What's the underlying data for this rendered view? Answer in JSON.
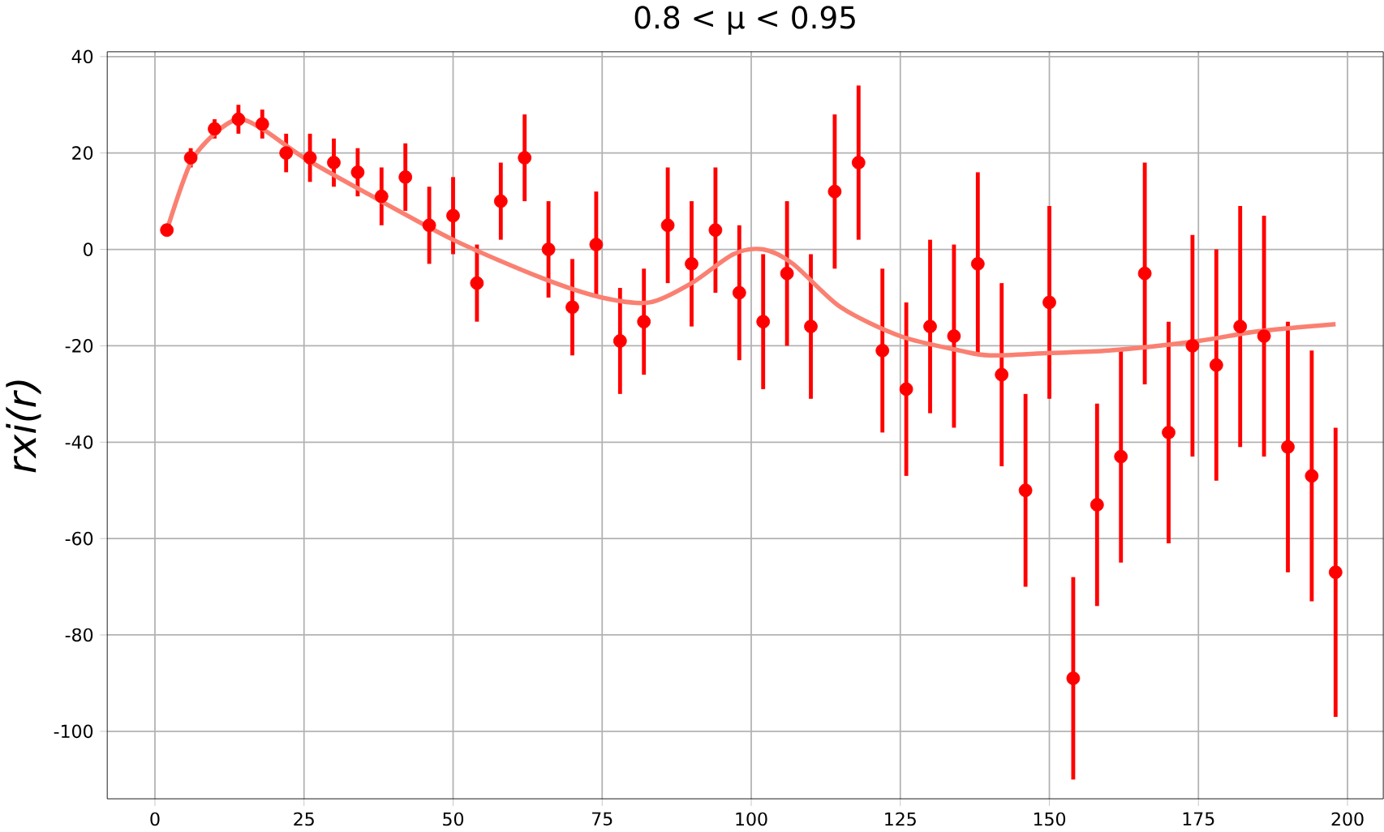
{
  "chart_data": {
    "type": "scatter",
    "title": "0.8 < μ < 0.95",
    "ylabel": "rxi(r)",
    "x": [
      2,
      6,
      10,
      14,
      18,
      22,
      26,
      30,
      34,
      38,
      42,
      46,
      50,
      54,
      58,
      62,
      66,
      70,
      74,
      78,
      82,
      86,
      90,
      94,
      98,
      102,
      106,
      110,
      114,
      118,
      122,
      126,
      130,
      134,
      138,
      142,
      146,
      150,
      154,
      158,
      162,
      166,
      170,
      174,
      178,
      182,
      186,
      190,
      194,
      198
    ],
    "series": [
      {
        "color": "#ff0000",
        "marker": "circle",
        "values": [
          4,
          19,
          25,
          27,
          26,
          20,
          19,
          18,
          16,
          11,
          15,
          5,
          7,
          -7,
          10,
          19,
          0,
          -12,
          1,
          -19,
          -15,
          5,
          -3,
          4,
          -9,
          -15,
          -5,
          -16,
          12,
          18,
          -21,
          -29,
          -16,
          -18,
          -3,
          -26,
          -50,
          -11,
          -89,
          -53,
          -43,
          -5,
          -38,
          -20,
          -24,
          -16,
          -18,
          -41,
          -47,
          -67
        ],
        "errors": [
          1,
          2,
          2,
          3,
          3,
          4,
          5,
          5,
          5,
          6,
          7,
          8,
          8,
          8,
          8,
          9,
          10,
          10,
          11,
          11,
          11,
          12,
          13,
          13,
          14,
          14,
          15,
          15,
          16,
          16,
          17,
          18,
          18,
          19,
          19,
          19,
          20,
          20,
          21,
          21,
          22,
          23,
          23,
          23,
          24,
          25,
          25,
          26,
          26,
          30
        ]
      },
      {
        "type": "line",
        "color": "#fa8072",
        "marker": "none",
        "x": [
          2,
          6,
          10,
          14,
          18,
          25,
          35,
          50,
          65,
          75,
          83,
          90,
          97,
          102,
          107,
          115,
          125,
          135,
          140,
          150,
          160,
          175,
          185,
          198
        ],
        "values": [
          4,
          18,
          24,
          27,
          25,
          19,
          12,
          2,
          -6,
          -10,
          -11,
          -7,
          -1,
          0,
          -3,
          -12,
          -18,
          -21,
          -22,
          -21.5,
          -21,
          -19,
          -17,
          -15.5
        ]
      }
    ],
    "xlim": [
      -8,
      206
    ],
    "ylim": [
      -114,
      41
    ],
    "xticks": [
      0,
      25,
      50,
      75,
      100,
      125,
      150,
      175,
      200
    ],
    "yticks": [
      -100,
      -80,
      -60,
      -40,
      -20,
      0,
      20,
      40
    ],
    "grid": true
  }
}
